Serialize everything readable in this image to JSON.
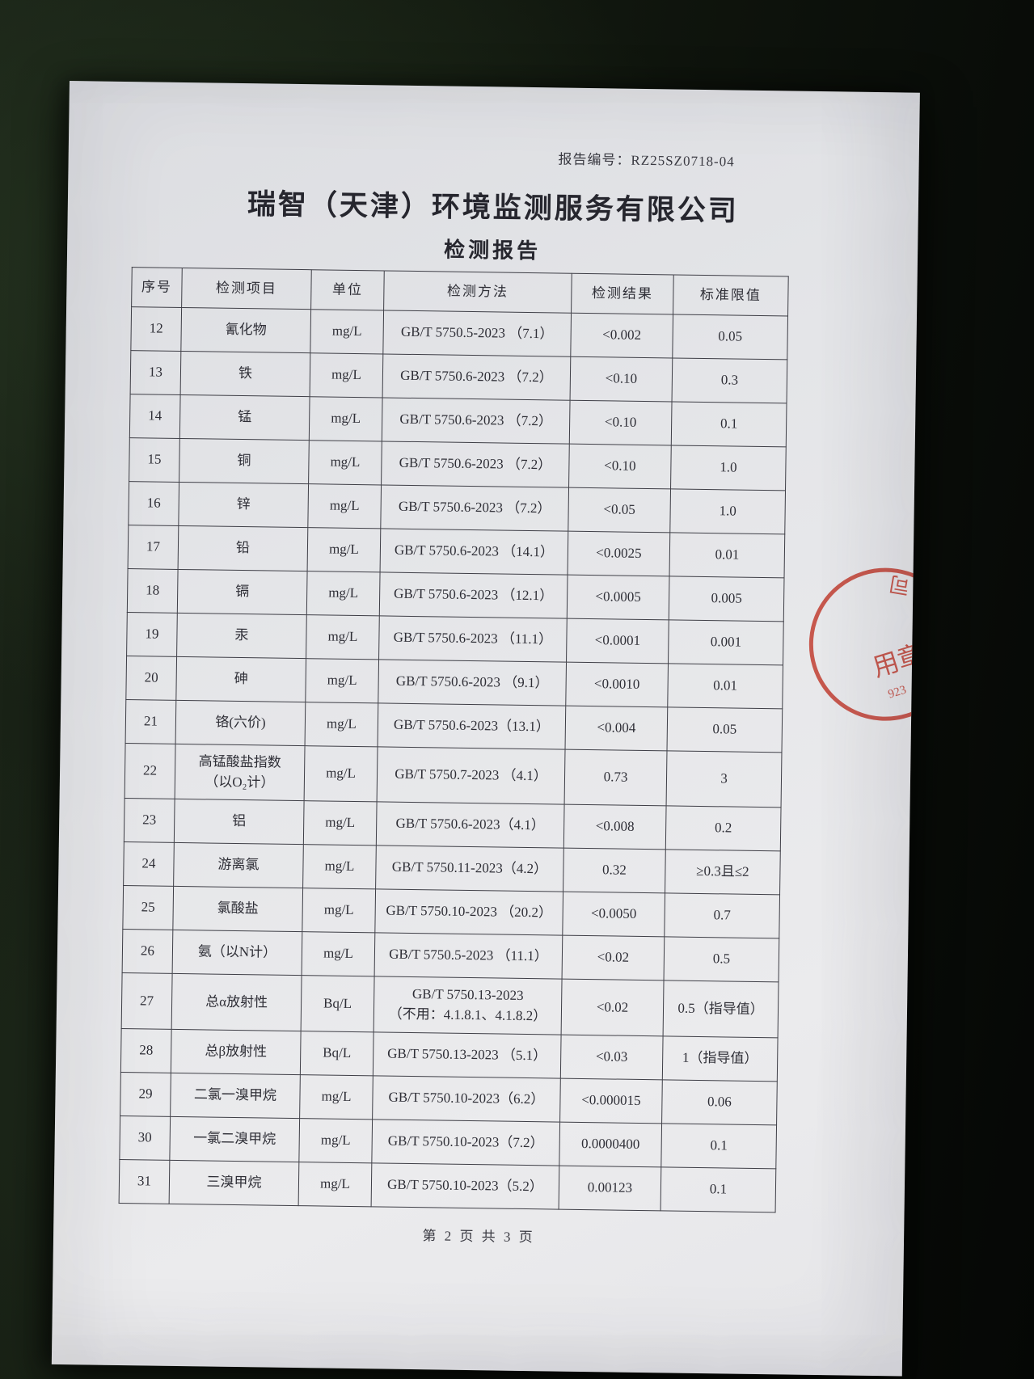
{
  "page": {
    "report_no_label": "报告编号：",
    "report_no": "RZ25SZ0718-04",
    "company": "瑞智（天津）环境监测服务有限公司",
    "doc_title": "检测报告",
    "footer": "第 2 页 共 3 页"
  },
  "table": {
    "headers": [
      "序号",
      "检测项目",
      "单位",
      "检测方法",
      "检测结果",
      "标准限值"
    ],
    "rows": [
      {
        "no": "12",
        "item": "氰化物",
        "unit": "mg/L",
        "method": "GB/T 5750.5-2023 （7.1）",
        "result": "<0.002",
        "limit": "0.05"
      },
      {
        "no": "13",
        "item": "铁",
        "unit": "mg/L",
        "method": "GB/T 5750.6-2023 （7.2）",
        "result": "<0.10",
        "limit": "0.3"
      },
      {
        "no": "14",
        "item": "锰",
        "unit": "mg/L",
        "method": "GB/T 5750.6-2023 （7.2）",
        "result": "<0.10",
        "limit": "0.1"
      },
      {
        "no": "15",
        "item": "铜",
        "unit": "mg/L",
        "method": "GB/T 5750.6-2023 （7.2）",
        "result": "<0.10",
        "limit": "1.0"
      },
      {
        "no": "16",
        "item": "锌",
        "unit": "mg/L",
        "method": "GB/T 5750.6-2023 （7.2）",
        "result": "<0.05",
        "limit": "1.0"
      },
      {
        "no": "17",
        "item": "铅",
        "unit": "mg/L",
        "method": "GB/T 5750.6-2023 （14.1）",
        "result": "<0.0025",
        "limit": "0.01"
      },
      {
        "no": "18",
        "item": "镉",
        "unit": "mg/L",
        "method": "GB/T 5750.6-2023 （12.1）",
        "result": "<0.0005",
        "limit": "0.005"
      },
      {
        "no": "19",
        "item": "汞",
        "unit": "mg/L",
        "method": "GB/T 5750.6-2023 （11.1）",
        "result": "<0.0001",
        "limit": "0.001"
      },
      {
        "no": "20",
        "item": "砷",
        "unit": "mg/L",
        "method": "GB/T 5750.6-2023 （9.1）",
        "result": "<0.0010",
        "limit": "0.01"
      },
      {
        "no": "21",
        "item": "铬(六价)",
        "unit": "mg/L",
        "method": "GB/T 5750.6-2023（13.1）",
        "result": "<0.004",
        "limit": "0.05"
      },
      {
        "no": "22",
        "item": "高锰酸盐指数\n（以O₂计）",
        "unit": "mg/L",
        "method": "GB/T 5750.7-2023 （4.1）",
        "result": "0.73",
        "limit": "3"
      },
      {
        "no": "23",
        "item": "铝",
        "unit": "mg/L",
        "method": "GB/T 5750.6-2023（4.1）",
        "result": "<0.008",
        "limit": "0.2"
      },
      {
        "no": "24",
        "item": "游离氯",
        "unit": "mg/L",
        "method": "GB/T 5750.11-2023（4.2）",
        "result": "0.32",
        "limit": "≥0.3且≤2"
      },
      {
        "no": "25",
        "item": "氯酸盐",
        "unit": "mg/L",
        "method": "GB/T 5750.10-2023 （20.2）",
        "result": "<0.0050",
        "limit": "0.7"
      },
      {
        "no": "26",
        "item": "氨（以N计）",
        "unit": "mg/L",
        "method": "GB/T 5750.5-2023 （11.1）",
        "result": "<0.02",
        "limit": "0.5"
      },
      {
        "no": "27",
        "item": "总α放射性",
        "unit": "Bq/L",
        "method": "GB/T 5750.13-2023\n（不用：4.1.8.1、4.1.8.2）",
        "result": "<0.02",
        "limit": "0.5（指导值）"
      },
      {
        "no": "28",
        "item": "总β放射性",
        "unit": "Bq/L",
        "method": "GB/T 5750.13-2023 （5.1）",
        "result": "<0.03",
        "limit": "1（指导值）"
      },
      {
        "no": "29",
        "item": "二氯一溴甲烷",
        "unit": "mg/L",
        "method": "GB/T 5750.10-2023（6.2）",
        "result": "<0.000015",
        "limit": "0.06"
      },
      {
        "no": "30",
        "item": "一氯二溴甲烷",
        "unit": "mg/L",
        "method": "GB/T 5750.10-2023（7.2）",
        "result": "0.0000400",
        "limit": "0.1"
      },
      {
        "no": "31",
        "item": "三溴甲烷",
        "unit": "mg/L",
        "method": "GB/T 5750.10-2023（5.2）",
        "result": "0.00123",
        "limit": "0.1"
      }
    ]
  },
  "stamp": {
    "arc_text": "服务有限公司",
    "center_text": "用章",
    "number": "923",
    "color": "#c0392b"
  }
}
